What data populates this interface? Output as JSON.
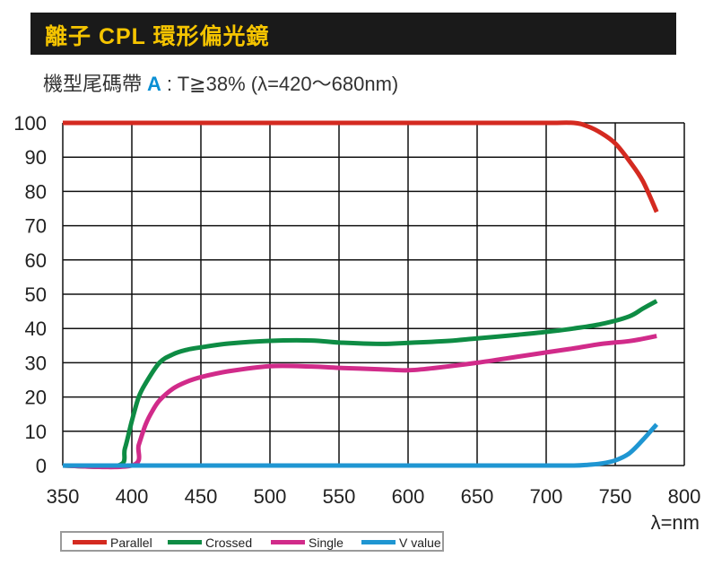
{
  "header": {
    "title": "離子 CPL 環形偏光鏡",
    "subtitle_prefix": "機型尾碼帶",
    "subtitle_model": "A",
    "subtitle_spec": ": T≧38% (λ=420～680nm)"
  },
  "colors": {
    "title_bar": "#1a1a1a",
    "title_text": "#f5c400",
    "model_letter": "#0a8fd4"
  },
  "chart_data": {
    "type": "line",
    "title": "",
    "xlabel": "λ=nm",
    "ylabel": "",
    "xlim": [
      350,
      800
    ],
    "ylim": [
      0,
      100
    ],
    "xticks": [
      350,
      400,
      450,
      500,
      550,
      600,
      650,
      700,
      750,
      800
    ],
    "yticks": [
      0,
      10,
      20,
      30,
      40,
      50,
      60,
      70,
      80,
      90,
      100
    ],
    "grid": true,
    "legend_position": "bottom",
    "series": [
      {
        "name": "Parallel",
        "color": "#d42a20",
        "x": [
          350,
          400,
          450,
          500,
          550,
          600,
          650,
          700,
          720,
          730,
          740,
          750,
          760,
          770,
          780
        ],
        "y": [
          100,
          100,
          100,
          100,
          100,
          100,
          100,
          100,
          100,
          99,
          97,
          94,
          89,
          83,
          74
        ]
      },
      {
        "name": "Crossed",
        "color": "#0e8c44",
        "x": [
          350,
          390,
          395,
          400,
          405,
          410,
          420,
          430,
          440,
          450,
          470,
          500,
          530,
          550,
          580,
          600,
          630,
          650,
          680,
          700,
          720,
          740,
          760,
          770,
          780
        ],
        "y": [
          0,
          0,
          5,
          13,
          20,
          24,
          30,
          32.5,
          33.8,
          34.5,
          35.6,
          36.4,
          36.5,
          35.9,
          35.5,
          35.8,
          36.4,
          37.1,
          38.2,
          39,
          40,
          41.3,
          43.5,
          45.8,
          48
        ]
      },
      {
        "name": "Single",
        "color": "#d12b8a",
        "x": [
          350,
          400,
          405,
          410,
          415,
          420,
          430,
          440,
          450,
          470,
          500,
          530,
          550,
          580,
          600,
          620,
          650,
          680,
          700,
          720,
          740,
          760,
          770,
          780
        ],
        "y": [
          0,
          0,
          6,
          12,
          16,
          19,
          22.5,
          24.5,
          25.8,
          27.5,
          29,
          28.9,
          28.5,
          28.1,
          27.8,
          28.5,
          30,
          31.8,
          33,
          34.2,
          35.5,
          36.3,
          37,
          37.8
        ]
      },
      {
        "name": "V value",
        "color": "#1f96d2",
        "x": [
          350,
          400,
          500,
          600,
          700,
          720,
          730,
          740,
          750,
          760,
          770,
          780
        ],
        "y": [
          0,
          0,
          0,
          0,
          0,
          0,
          0.2,
          0.6,
          1.5,
          3.5,
          7.5,
          12
        ]
      }
    ]
  }
}
